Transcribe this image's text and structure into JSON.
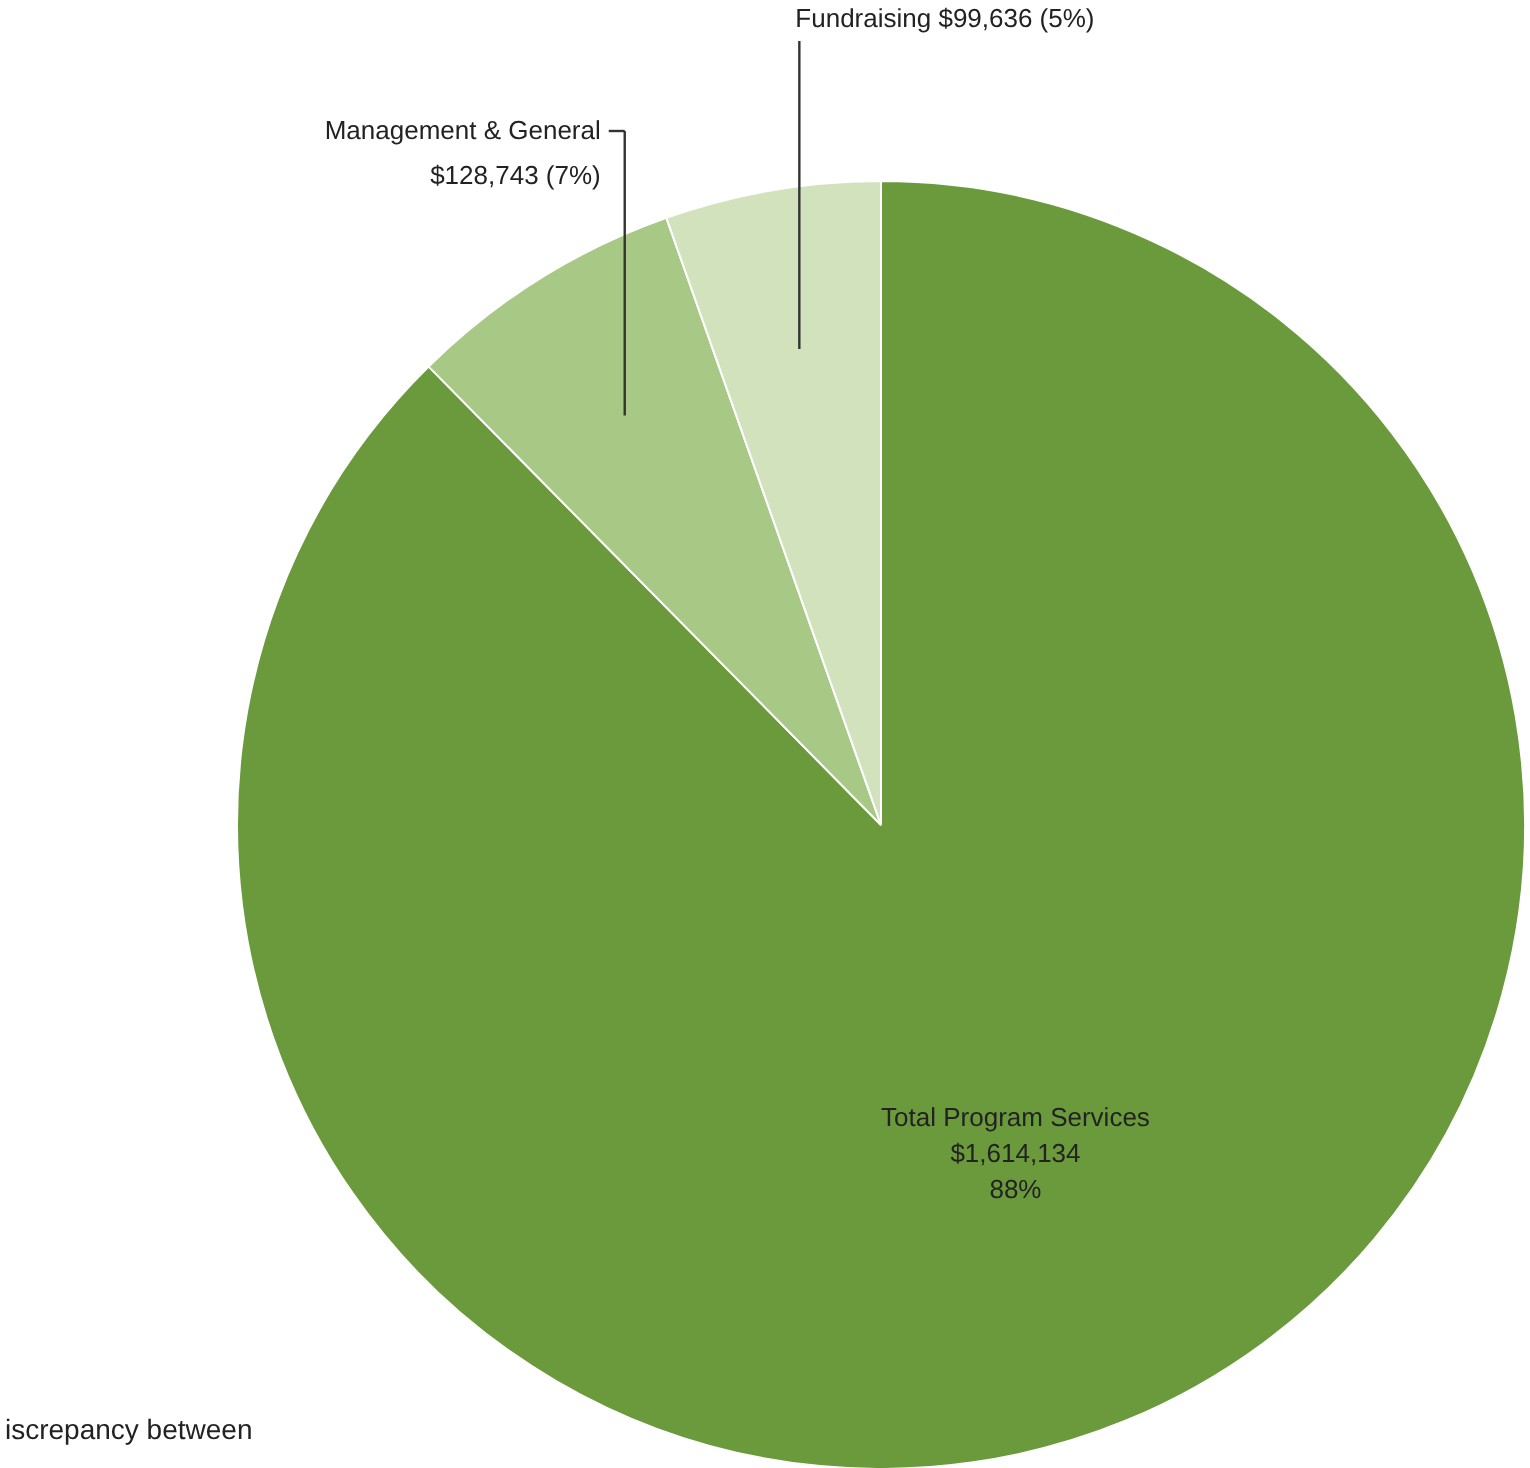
{
  "chart_data": {
    "type": "pie",
    "categories": [
      "Total Program Services",
      "Management & General",
      "Fundraising"
    ],
    "values": [
      1614134,
      128743,
      99636
    ],
    "value_labels": [
      "$1,614,134\n88%",
      "$128,743 (7%)",
      "$99,636 (5%)"
    ],
    "colors": [
      "#6b9a3d",
      "#a8c986",
      "#d1e2bd"
    ],
    "annotations": [
      "iscrepancy between"
    ],
    "legend": false
  }
}
